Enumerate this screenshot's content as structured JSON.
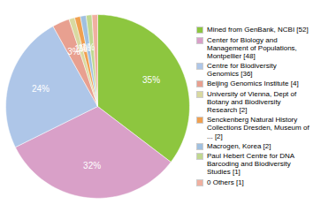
{
  "chart_data": {
    "type": "pie",
    "categories": [
      "Mined from GenBank, NCBI [52]",
      "Center for Biology and\nManagement of Populations,\nMontpellier [48]",
      "Centre for Biodiversity\nGenomics [36]",
      "Beijing Genomics Institute [4]",
      "University of Vienna, Dept of\nBotany and Biodiversity\nResearch [2]",
      "Senckenberg Natural History\nCollections Dresden, Museum of\n... [2]",
      "Macrogen, Korea [2]",
      "Paul Hebert Centre for DNA\nBarcoding and Biodiversity\nStudies [1]",
      "0 Others [1]"
    ],
    "values": [
      35,
      32,
      24,
      3,
      1,
      1,
      1,
      1,
      1
    ],
    "value_labels": [
      "35%",
      "32%",
      "24%",
      "3%",
      "1%",
      "1%",
      "1%",
      null,
      null
    ],
    "colors": [
      "#8dc63f",
      "#d9a0c8",
      "#aec6e8",
      "#e8a090",
      "#d9d9a0",
      "#f0a050",
      "#a0c0e0",
      "#c0d890",
      "#f0b0a0"
    ],
    "legend": "right",
    "data_labels": true
  }
}
